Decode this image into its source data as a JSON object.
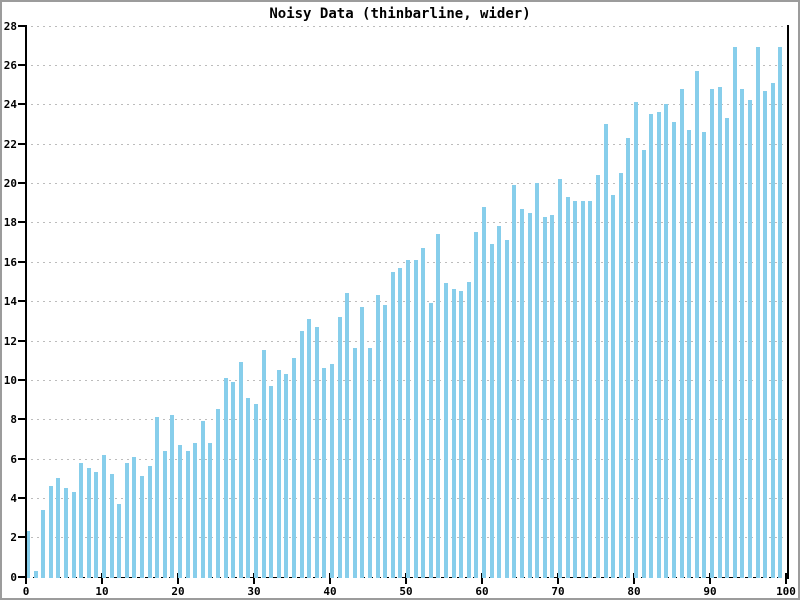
{
  "chart_data": {
    "type": "bar",
    "title": "Noisy Data (thinbarline, wider)",
    "xlabel": "",
    "ylabel": "",
    "style": "thin vertical bars (thinbarline), one bar per integer x",
    "x_min": 0,
    "x_step": 1,
    "values": [
      2.3,
      0.3,
      3.4,
      4.6,
      5.0,
      4.5,
      4.3,
      5.8,
      5.5,
      5.3,
      6.2,
      5.2,
      3.7,
      5.8,
      6.1,
      5.1,
      5.6,
      8.1,
      6.4,
      8.2,
      6.7,
      6.4,
      6.8,
      7.9,
      6.8,
      8.5,
      10.1,
      9.9,
      10.9,
      9.1,
      8.8,
      11.5,
      9.7,
      10.5,
      10.3,
      11.1,
      12.5,
      13.1,
      12.7,
      10.6,
      10.8,
      13.2,
      14.4,
      11.6,
      13.7,
      11.6,
      14.3,
      13.8,
      15.5,
      15.7,
      16.1,
      16.1,
      16.7,
      13.9,
      17.4,
      14.9,
      14.6,
      14.5,
      15.0,
      17.5,
      18.8,
      16.9,
      17.8,
      17.1,
      19.9,
      18.7,
      18.5,
      20.0,
      18.3,
      18.4,
      20.2,
      19.3,
      19.1,
      19.1,
      19.1,
      20.4,
      23.0,
      19.4,
      20.5,
      22.3,
      24.1,
      21.7,
      23.5,
      23.6,
      24.0,
      23.1,
      24.8,
      22.7,
      25.7,
      22.6,
      24.8,
      24.9,
      23.3,
      26.9,
      24.8,
      24.2,
      26.9,
      24.7,
      25.1,
      26.9
    ],
    "xlim": [
      0,
      100
    ],
    "ylim": [
      0,
      28
    ],
    "x_tick_values": [
      0,
      10,
      20,
      30,
      40,
      50,
      60,
      70,
      80,
      90,
      100
    ],
    "x_tick_labels": [
      "0",
      "10",
      "20",
      "30",
      "40",
      "50",
      "60",
      "70",
      "80",
      "90",
      "100"
    ],
    "y_tick_values": [
      0,
      2,
      4,
      6,
      8,
      10,
      12,
      14,
      16,
      18,
      20,
      22,
      24,
      26,
      28
    ],
    "y_tick_labels": [
      "0",
      "2",
      "4",
      "6",
      "8",
      "10",
      "12",
      "14",
      "16",
      "18",
      "20",
      "22",
      "24",
      "26",
      "28"
    ],
    "grid": "horizontal dashed gridlines at every y tick",
    "legend": "none"
  },
  "colors": {
    "background": "#ffffff",
    "frame_border": "#9c9c9c",
    "bar": "#87CEEB",
    "grid": "#bcbcbc",
    "axis": "#000000",
    "text": "#000000"
  }
}
